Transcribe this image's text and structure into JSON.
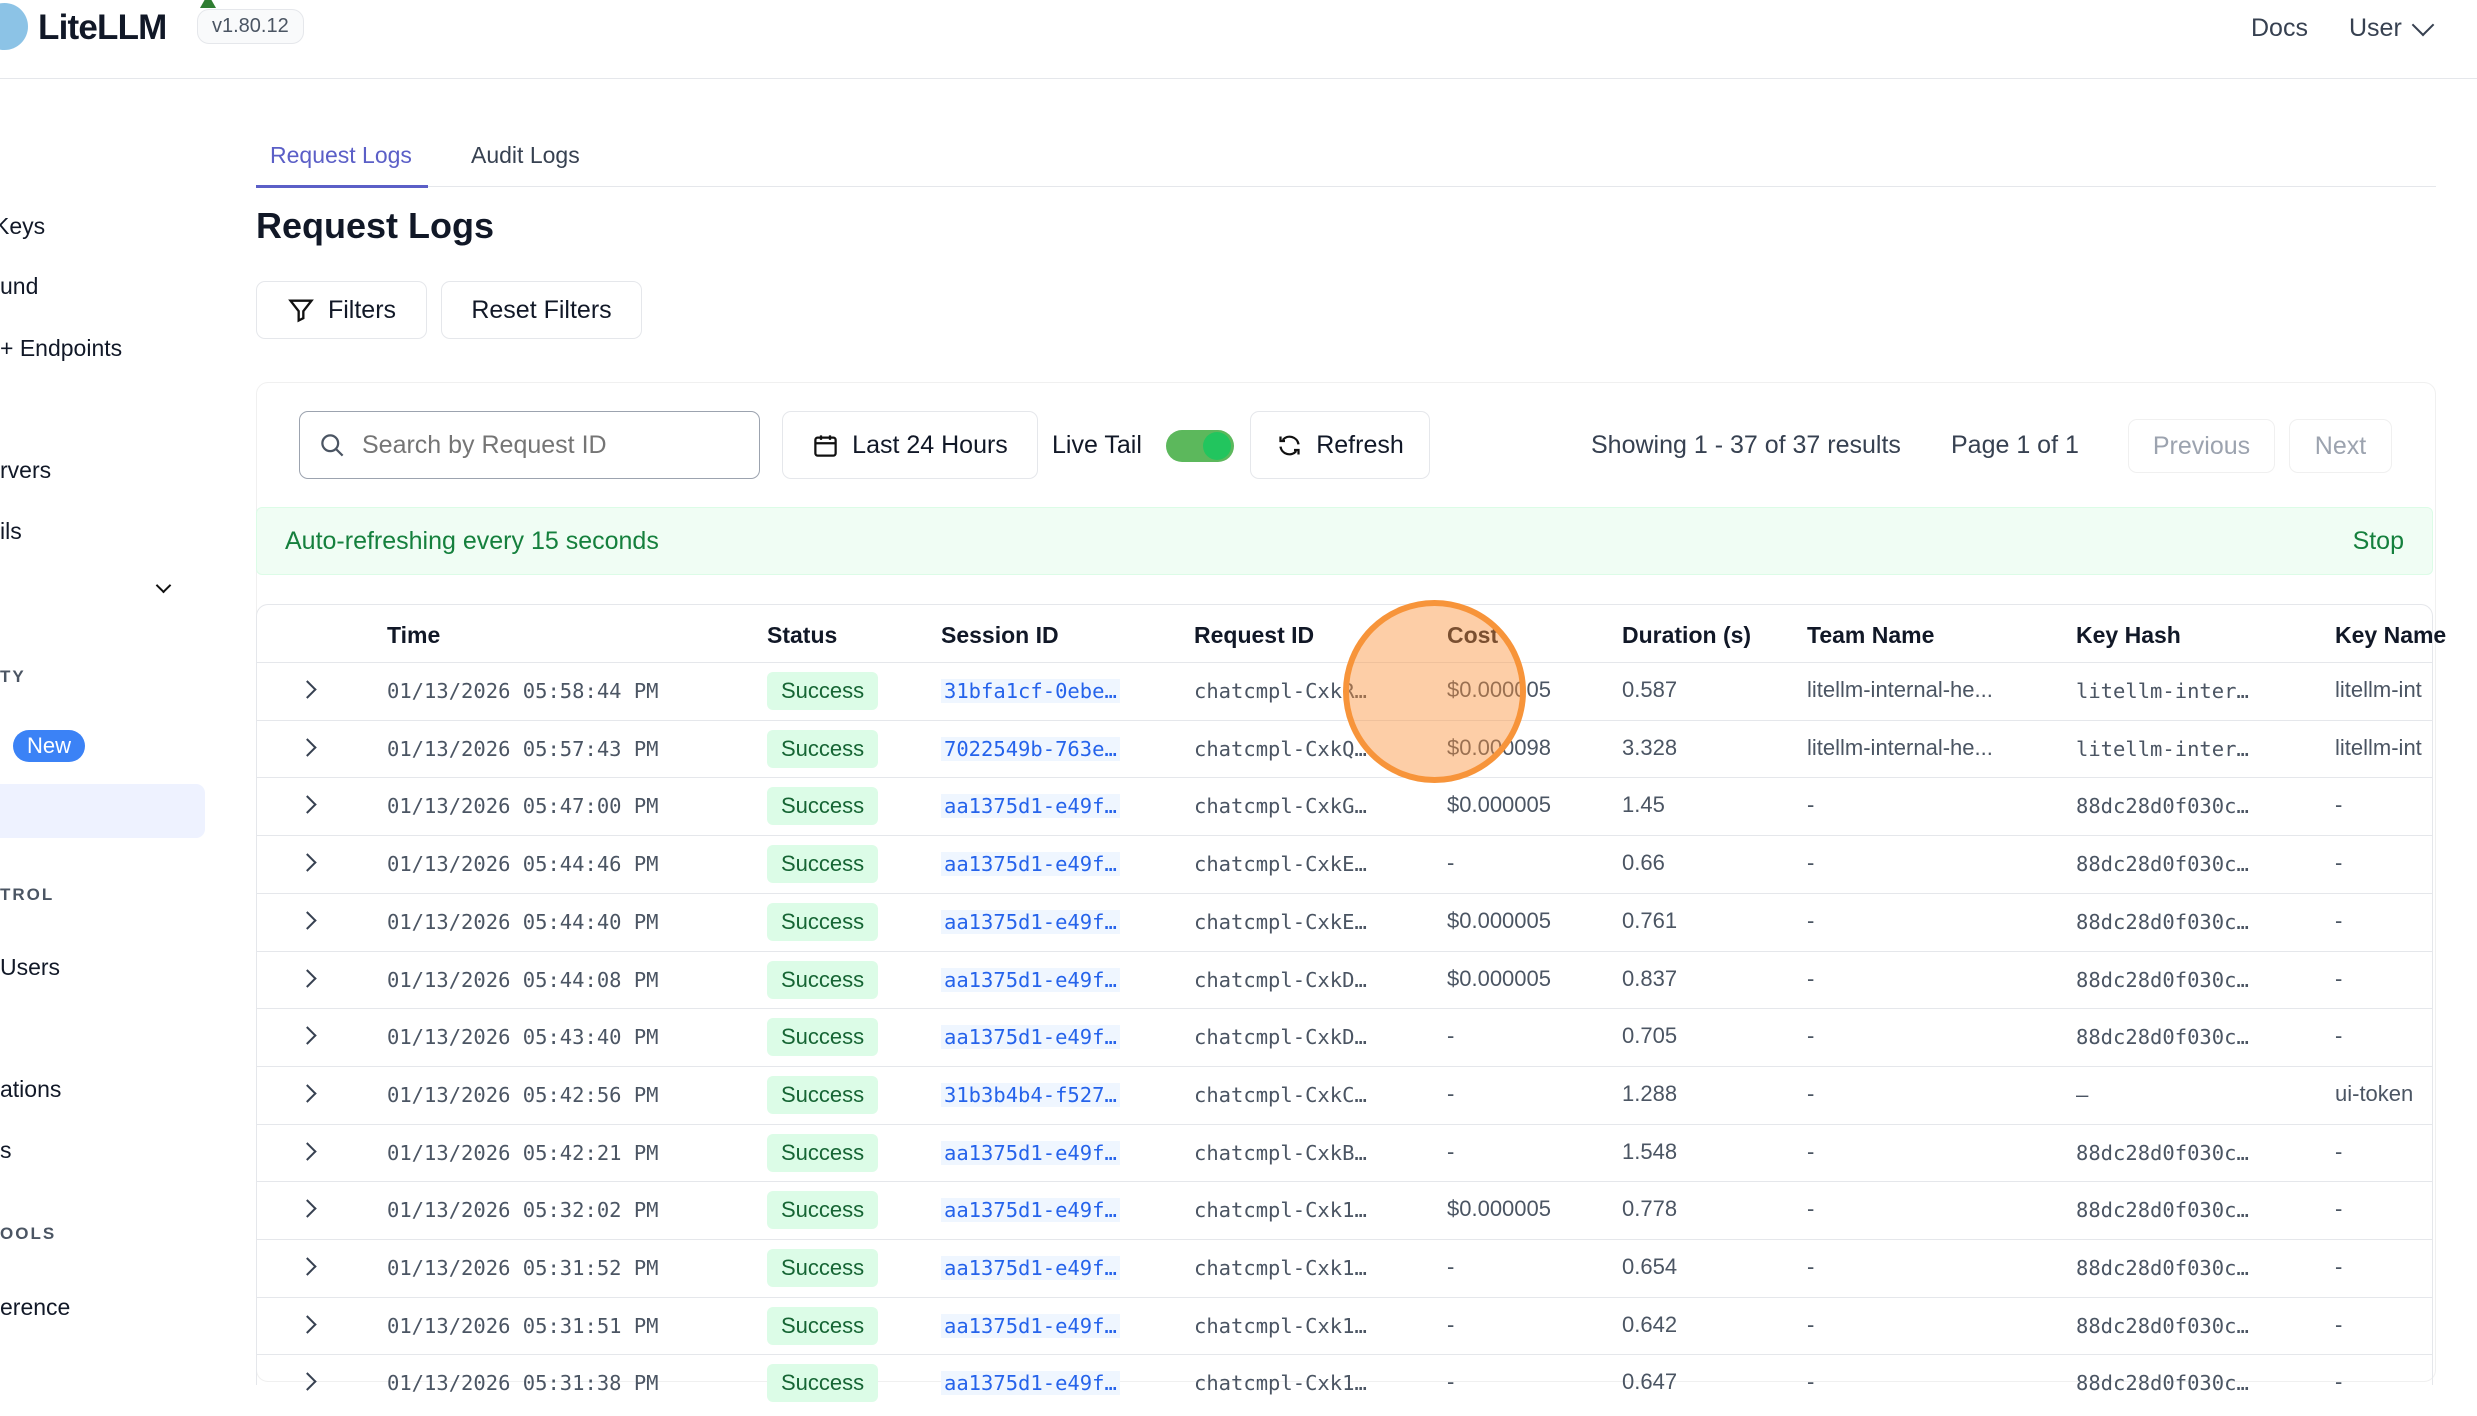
{
  "header": {
    "brand": "LiteLLM",
    "version": "v1.80.12",
    "docs": "Docs",
    "user": "User"
  },
  "sidebar": {
    "items": [
      "Keys",
      "und",
      "+ Endpoints",
      "rvers",
      "ils",
      "TY",
      "New",
      "TROL",
      "Users",
      "ations",
      "s",
      "OOLS",
      "erence"
    ]
  },
  "tabs": [
    {
      "label": "Request Logs",
      "active": true
    },
    {
      "label": "Audit Logs",
      "active": false
    }
  ],
  "page_title": "Request Logs",
  "buttons": {
    "filters": "Filters",
    "reset": "Reset Filters",
    "time_range": "Last 24 Hours",
    "live_tail": "Live Tail",
    "refresh": "Refresh",
    "previous": "Previous",
    "next": "Next"
  },
  "search": {
    "placeholder": "Search by Request ID",
    "value": ""
  },
  "live_tail_on": true,
  "pagination": {
    "showing": "Showing 1 - 37 of 37 results",
    "page": "Page 1 of 1"
  },
  "banner": {
    "text": "Auto-refreshing every 15 seconds",
    "stop": "Stop"
  },
  "colors": {
    "accent": "#5b5fc7",
    "success": "#166534",
    "link": "#2563eb",
    "highlight": "#f7943a"
  },
  "table": {
    "columns": [
      "Time",
      "Status",
      "Session ID",
      "Request ID",
      "Cost",
      "Duration (s)",
      "Team Name",
      "Key Hash",
      "Key Name"
    ],
    "rows": [
      [
        "01/13/2026 05:58:44 PM",
        "Success",
        "31bfa1cf-0ebe…",
        "chatcmpl-CxkR…",
        "$0.000005",
        "0.587",
        "litellm-internal-he...",
        "litellm-inter…",
        "litellm-int"
      ],
      [
        "01/13/2026 05:57:43 PM",
        "Success",
        "7022549b-763e…",
        "chatcmpl-CxkQ…",
        "$0.000098",
        "3.328",
        "litellm-internal-he...",
        "litellm-inter…",
        "litellm-int"
      ],
      [
        "01/13/2026 05:47:00 PM",
        "Success",
        "aa1375d1-e49f…",
        "chatcmpl-CxkG…",
        "$0.000005",
        "1.45",
        "-",
        "88dc28d0f030c…",
        "-"
      ],
      [
        "01/13/2026 05:44:46 PM",
        "Success",
        "aa1375d1-e49f…",
        "chatcmpl-CxkE…",
        "-",
        "0.66",
        "-",
        "88dc28d0f030c…",
        "-"
      ],
      [
        "01/13/2026 05:44:40 PM",
        "Success",
        "aa1375d1-e49f…",
        "chatcmpl-CxkE…",
        "$0.000005",
        "0.761",
        "-",
        "88dc28d0f030c…",
        "-"
      ],
      [
        "01/13/2026 05:44:08 PM",
        "Success",
        "aa1375d1-e49f…",
        "chatcmpl-CxkD…",
        "$0.000005",
        "0.837",
        "-",
        "88dc28d0f030c…",
        "-"
      ],
      [
        "01/13/2026 05:43:40 PM",
        "Success",
        "aa1375d1-e49f…",
        "chatcmpl-CxkD…",
        "-",
        "0.705",
        "-",
        "88dc28d0f030c…",
        "-"
      ],
      [
        "01/13/2026 05:42:56 PM",
        "Success",
        "31b3b4b4-f527…",
        "chatcmpl-CxkC…",
        "-",
        "1.288",
        "-",
        "–",
        "ui-token"
      ],
      [
        "01/13/2026 05:42:21 PM",
        "Success",
        "aa1375d1-e49f…",
        "chatcmpl-CxkB…",
        "-",
        "1.548",
        "-",
        "88dc28d0f030c…",
        "-"
      ],
      [
        "01/13/2026 05:32:02 PM",
        "Success",
        "aa1375d1-e49f…",
        "chatcmpl-Cxk1…",
        "$0.000005",
        "0.778",
        "-",
        "88dc28d0f030c…",
        "-"
      ],
      [
        "01/13/2026 05:31:52 PM",
        "Success",
        "aa1375d1-e49f…",
        "chatcmpl-Cxk1…",
        "-",
        "0.654",
        "-",
        "88dc28d0f030c…",
        "-"
      ],
      [
        "01/13/2026 05:31:51 PM",
        "Success",
        "aa1375d1-e49f…",
        "chatcmpl-Cxk1…",
        "-",
        "0.642",
        "-",
        "88dc28d0f030c…",
        "-"
      ],
      [
        "01/13/2026 05:31:38 PM",
        "Success",
        "aa1375d1-e49f…",
        "chatcmpl-Cxk1…",
        "-",
        "0.647",
        "-",
        "88dc28d0f030c…",
        "-"
      ]
    ]
  }
}
